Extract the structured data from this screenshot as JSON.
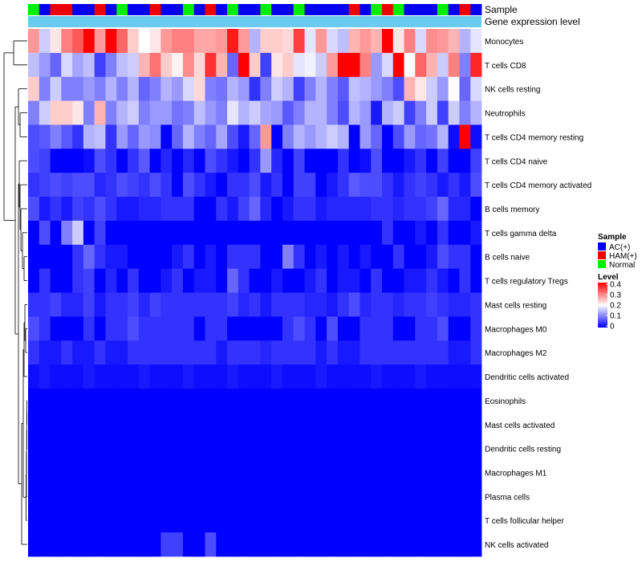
{
  "chart_data": {
    "type": "heatmap",
    "annotation_rows": [
      {
        "name": "Sample"
      },
      {
        "name": "Gene expression level"
      }
    ],
    "sample_groups": [
      "AC(+)",
      "HAM(+)",
      "Normal"
    ],
    "sample_group_colors": [
      "#0000ee",
      "#ee0000",
      "#00ee00"
    ],
    "sample_annotation": [
      2,
      0,
      1,
      1,
      0,
      0,
      1,
      0,
      2,
      0,
      0,
      1,
      0,
      0,
      2,
      0,
      1,
      0,
      2,
      0,
      0,
      2,
      0,
      0,
      2,
      0,
      0,
      0,
      0,
      1,
      0,
      2,
      1,
      2,
      0,
      0,
      0,
      2,
      0,
      1,
      0
    ],
    "expression_annotation_color": "#6bcbee",
    "rows": [
      "Monocytes",
      "T cells CD8",
      "NK cells resting",
      "Neutrophils",
      "T cells CD4 memory resting",
      "T cells CD4 naive",
      "T cells CD4 memory activated",
      "B cells memory",
      "T cells gamma delta",
      "B cells naive",
      "T cells regulatory  Tregs",
      "Mast cells resting",
      "Macrophages M0",
      "Macrophages M2",
      "Dendritic cells activated",
      "Eosinophils",
      "Mast cells activated",
      "Dendritic cells resting",
      "Macrophages M1",
      "Plasma cells",
      "T cells follicular helper",
      "NK cells activated"
    ],
    "ncols": 41,
    "values": [
      [
        0.28,
        0.16,
        0.22,
        0.3,
        0.33,
        0.4,
        0.28,
        0.4,
        0.32,
        0.24,
        0.2,
        0.22,
        0.28,
        0.3,
        0.3,
        0.27,
        0.27,
        0.28,
        0.38,
        0.28,
        0.14,
        0.24,
        0.24,
        0.23,
        0.35,
        0.18,
        0.28,
        0.17,
        0.15,
        0.26,
        0.28,
        0.26,
        0.4,
        0.22,
        0.3,
        0.17,
        0.29,
        0.28,
        0.26,
        0.14,
        0.18
      ],
      [
        0.15,
        0.12,
        0.08,
        0.17,
        0.13,
        0.15,
        0.05,
        0.1,
        0.15,
        0.16,
        0.26,
        0.31,
        0.24,
        0.21,
        0.29,
        0.23,
        0.36,
        0.26,
        0.08,
        0.4,
        0.24,
        0.05,
        0.22,
        0.24,
        0.18,
        0.19,
        0.16,
        0.28,
        0.4,
        0.4,
        0.3,
        0.12,
        0.17,
        0.4,
        0.2,
        0.32,
        0.26,
        0.16,
        0.3,
        0.1,
        0.37
      ],
      [
        0.24,
        0.1,
        0.16,
        0.1,
        0.1,
        0.12,
        0.1,
        0.14,
        0.1,
        0.14,
        0.08,
        0.1,
        0.14,
        0.12,
        0.17,
        0.23,
        0.1,
        0.09,
        0.14,
        0.12,
        0.04,
        0.1,
        0.16,
        0.14,
        0.05,
        0.1,
        0.14,
        0.1,
        0.07,
        0.15,
        0.14,
        0.12,
        0.1,
        0.06,
        0.26,
        0.22,
        0.16,
        0.12,
        0.2,
        0.08,
        0.17
      ],
      [
        0.1,
        0.16,
        0.24,
        0.24,
        0.22,
        0.1,
        0.26,
        0.1,
        0.14,
        0.16,
        0.1,
        0.12,
        0.12,
        0.09,
        0.1,
        0.15,
        0.12,
        0.1,
        0.18,
        0.14,
        0.16,
        0.13,
        0.12,
        0.07,
        0.1,
        0.14,
        0.14,
        0.1,
        0.06,
        0.14,
        0.12,
        0.02,
        0.14,
        0.16,
        0.05,
        0.1,
        0.16,
        0.05,
        0.16,
        0.1,
        0.14
      ],
      [
        0.06,
        0.07,
        0.1,
        0.07,
        0.04,
        0.14,
        0.15,
        0.04,
        0.12,
        0.08,
        0.12,
        0.11,
        0.0,
        0.08,
        0.14,
        0.1,
        0.08,
        0.13,
        0.06,
        0.02,
        0.08,
        0.28,
        0.0,
        0.1,
        0.14,
        0.12,
        0.14,
        0.16,
        0.14,
        0.0,
        0.12,
        0.08,
        0.0,
        0.06,
        0.12,
        0.08,
        0.09,
        0.14,
        0.01,
        0.4,
        0.01
      ],
      [
        0.06,
        0.05,
        0.0,
        0.0,
        0.0,
        0.01,
        0.06,
        0.04,
        0.0,
        0.04,
        0.07,
        0.0,
        0.03,
        0.0,
        0.03,
        0.0,
        0.06,
        0.04,
        0.02,
        0.0,
        0.04,
        0.12,
        0.03,
        0.0,
        0.05,
        0.0,
        0.0,
        0.0,
        0.04,
        0.0,
        0.01,
        0.06,
        0.0,
        0.0,
        0.02,
        0.04,
        0.0,
        0.05,
        0.0,
        0.0,
        0.05
      ],
      [
        0.04,
        0.05,
        0.06,
        0.05,
        0.06,
        0.06,
        0.03,
        0.04,
        0.06,
        0.05,
        0.04,
        0.06,
        0.04,
        0.0,
        0.06,
        0.04,
        0.02,
        0.0,
        0.04,
        0.04,
        0.06,
        0.02,
        0.04,
        0.0,
        0.05,
        0.05,
        0.0,
        0.02,
        0.04,
        0.07,
        0.06,
        0.06,
        0.04,
        0.02,
        0.04,
        0.05,
        0.04,
        0.02,
        0.04,
        0.02,
        0.06
      ],
      [
        0.06,
        0.02,
        0.04,
        0.02,
        0.05,
        0.04,
        0.06,
        0.04,
        0.02,
        0.02,
        0.03,
        0.03,
        0.04,
        0.04,
        0.04,
        0.0,
        0.0,
        0.04,
        0.02,
        0.05,
        0.08,
        0.03,
        0.0,
        0.02,
        0.04,
        0.04,
        0.02,
        0.03,
        0.03,
        0.03,
        0.03,
        0.04,
        0.04,
        0.03,
        0.04,
        0.04,
        0.05,
        0.08,
        0.03,
        0.03,
        0.0
      ],
      [
        0.0,
        0.06,
        0.0,
        0.1,
        0.16,
        0.0,
        0.05,
        0.0,
        0.0,
        0.0,
        0.0,
        0.0,
        0.0,
        0.0,
        0.0,
        0.0,
        0.0,
        0.0,
        0.0,
        0.0,
        0.0,
        0.0,
        0.0,
        0.0,
        0.0,
        0.0,
        0.0,
        0.0,
        0.0,
        0.0,
        0.0,
        0.0,
        0.04,
        0.0,
        0.0,
        0.02,
        0.0,
        0.04,
        0.0,
        0.0,
        0.02
      ],
      [
        0.0,
        0.0,
        0.0,
        0.0,
        0.04,
        0.08,
        0.04,
        0.02,
        0.02,
        0.0,
        0.0,
        0.0,
        0.0,
        0.02,
        0.04,
        0.0,
        0.02,
        0.0,
        0.04,
        0.04,
        0.04,
        0.0,
        0.0,
        0.1,
        0.04,
        0.0,
        0.02,
        0.0,
        0.02,
        0.0,
        0.02,
        0.0,
        0.0,
        0.04,
        0.0,
        0.0,
        0.02,
        0.06,
        0.04,
        0.04,
        0.0
      ],
      [
        0.0,
        0.04,
        0.0,
        0.0,
        0.04,
        0.05,
        0.0,
        0.03,
        0.0,
        0.04,
        0.0,
        0.0,
        0.02,
        0.04,
        0.0,
        0.02,
        0.02,
        0.0,
        0.08,
        0.04,
        0.0,
        0.0,
        0.02,
        0.0,
        0.0,
        0.02,
        0.04,
        0.0,
        0.02,
        0.02,
        0.0,
        0.04,
        0.0,
        0.0,
        0.02,
        0.02,
        0.04,
        0.02,
        0.0,
        0.04,
        0.0
      ],
      [
        0.04,
        0.04,
        0.05,
        0.03,
        0.03,
        0.05,
        0.02,
        0.04,
        0.04,
        0.05,
        0.03,
        0.05,
        0.04,
        0.04,
        0.04,
        0.04,
        0.04,
        0.04,
        0.05,
        0.03,
        0.04,
        0.02,
        0.04,
        0.04,
        0.04,
        0.03,
        0.03,
        0.02,
        0.04,
        0.06,
        0.03,
        0.04,
        0.04,
        0.03,
        0.04,
        0.04,
        0.05,
        0.04,
        0.03,
        0.03,
        0.04
      ],
      [
        0.06,
        0.04,
        0.0,
        0.0,
        0.0,
        0.04,
        0.0,
        0.04,
        0.04,
        0.06,
        0.04,
        0.04,
        0.04,
        0.04,
        0.04,
        0.0,
        0.04,
        0.04,
        0.0,
        0.0,
        0.0,
        0.0,
        0.0,
        0.04,
        0.06,
        0.04,
        0.0,
        0.06,
        0.0,
        0.0,
        0.04,
        0.04,
        0.04,
        0.0,
        0.0,
        0.04,
        0.04,
        0.06,
        0.0,
        0.0,
        0.04
      ],
      [
        0.04,
        0.02,
        0.02,
        0.04,
        0.02,
        0.02,
        0.04,
        0.02,
        0.02,
        0.04,
        0.04,
        0.04,
        0.04,
        0.04,
        0.04,
        0.04,
        0.04,
        0.02,
        0.04,
        0.04,
        0.04,
        0.03,
        0.04,
        0.04,
        0.04,
        0.04,
        0.02,
        0.04,
        0.02,
        0.02,
        0.04,
        0.04,
        0.04,
        0.04,
        0.04,
        0.04,
        0.04,
        0.04,
        0.02,
        0.02,
        0.04
      ],
      [
        0.01,
        0.02,
        0.01,
        0.01,
        0.01,
        0.02,
        0.01,
        0.01,
        0.01,
        0.01,
        0.02,
        0.01,
        0.01,
        0.01,
        0.02,
        0.01,
        0.01,
        0.01,
        0.02,
        0.01,
        0.01,
        0.01,
        0.02,
        0.01,
        0.01,
        0.01,
        0.02,
        0.01,
        0.01,
        0.01,
        0.01,
        0.02,
        0.01,
        0.01,
        0.01,
        0.02,
        0.01,
        0.01,
        0.01,
        0.01,
        0.01
      ],
      [
        0,
        0,
        0,
        0,
        0,
        0,
        0,
        0,
        0,
        0,
        0,
        0,
        0,
        0,
        0,
        0,
        0,
        0,
        0,
        0,
        0,
        0,
        0,
        0,
        0,
        0,
        0,
        0,
        0,
        0,
        0,
        0,
        0,
        0,
        0,
        0,
        0,
        0,
        0,
        0,
        0
      ],
      [
        0,
        0,
        0,
        0,
        0,
        0,
        0,
        0,
        0,
        0,
        0,
        0,
        0,
        0,
        0,
        0,
        0,
        0,
        0,
        0,
        0,
        0,
        0,
        0,
        0,
        0,
        0,
        0,
        0,
        0,
        0,
        0,
        0,
        0,
        0,
        0,
        0,
        0,
        0,
        0,
        0
      ],
      [
        0,
        0,
        0,
        0,
        0,
        0,
        0,
        0,
        0,
        0,
        0,
        0,
        0,
        0,
        0,
        0,
        0,
        0,
        0,
        0,
        0,
        0,
        0,
        0,
        0,
        0,
        0,
        0,
        0,
        0,
        0,
        0,
        0,
        0,
        0,
        0,
        0,
        0,
        0,
        0,
        0
      ],
      [
        0,
        0,
        0,
        0,
        0,
        0,
        0,
        0,
        0,
        0,
        0,
        0,
        0,
        0,
        0,
        0,
        0,
        0,
        0,
        0,
        0,
        0,
        0,
        0,
        0,
        0,
        0,
        0,
        0,
        0,
        0,
        0,
        0,
        0,
        0,
        0,
        0,
        0,
        0,
        0,
        0
      ],
      [
        0,
        0,
        0,
        0,
        0,
        0,
        0,
        0,
        0,
        0,
        0,
        0,
        0,
        0,
        0,
        0,
        0,
        0,
        0,
        0,
        0,
        0,
        0,
        0,
        0,
        0,
        0,
        0,
        0,
        0,
        0,
        0,
        0,
        0,
        0,
        0,
        0,
        0,
        0,
        0,
        0
      ],
      [
        0,
        0,
        0,
        0,
        0,
        0,
        0,
        0,
        0,
        0,
        0,
        0,
        0,
        0,
        0,
        0,
        0,
        0,
        0,
        0,
        0,
        0,
        0,
        0,
        0,
        0,
        0,
        0,
        0,
        0,
        0,
        0,
        0,
        0,
        0,
        0,
        0,
        0,
        0,
        0,
        0
      ],
      [
        0,
        0,
        0,
        0,
        0,
        0,
        0,
        0,
        0,
        0,
        0,
        0,
        0.05,
        0.05,
        0,
        0,
        0.06,
        0,
        0,
        0,
        0,
        0,
        0,
        0,
        0,
        0,
        0,
        0,
        0,
        0,
        0,
        0,
        0,
        0,
        0,
        0,
        0,
        0,
        0,
        0,
        0
      ]
    ],
    "color_scale": {
      "min": 0,
      "mid": 0.2,
      "max": 0.4,
      "low": "#0000ff",
      "midcolor": "#ffffff",
      "high": "#ff0000"
    },
    "legends": {
      "sample": {
        "title": "Sample",
        "entries": [
          "AC(+)",
          "HAM(+)",
          "Normal"
        ]
      },
      "level": {
        "title": "Level",
        "ticks": [
          "0.4",
          "0.3",
          "0.2",
          "0.1",
          "0"
        ],
        "tick_values": [
          0.4,
          0.3,
          0.2,
          0.1,
          0
        ]
      }
    },
    "dendrogram": "row-clustering"
  }
}
